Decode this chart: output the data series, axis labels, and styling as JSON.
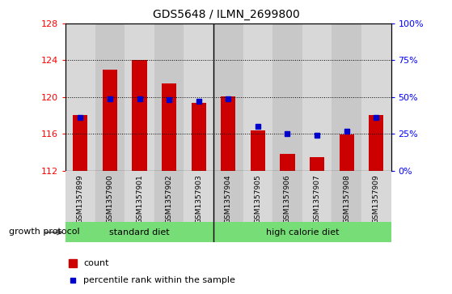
{
  "title": "GDS5648 / ILMN_2699800",
  "samples": [
    "GSM1357899",
    "GSM1357900",
    "GSM1357901",
    "GSM1357902",
    "GSM1357903",
    "GSM1357904",
    "GSM1357905",
    "GSM1357906",
    "GSM1357907",
    "GSM1357908",
    "GSM1357909"
  ],
  "red_values": [
    118.0,
    123.0,
    124.0,
    121.5,
    119.4,
    120.1,
    116.4,
    113.8,
    113.5,
    115.9,
    118.0
  ],
  "blue_values": [
    36,
    49,
    49,
    48,
    47,
    49,
    30,
    25,
    24,
    27,
    36
  ],
  "ylim_left": [
    112,
    128
  ],
  "ylim_right": [
    0,
    100
  ],
  "yticks_left": [
    112,
    116,
    120,
    124,
    128
  ],
  "yticks_right": [
    0,
    25,
    50,
    75,
    100
  ],
  "yticklabels_right": [
    "0%",
    "25%",
    "50%",
    "75%",
    "100%"
  ],
  "groups": [
    {
      "label": "standard diet",
      "start": 0,
      "end": 4
    },
    {
      "label": "high calorie diet",
      "start": 5,
      "end": 10
    }
  ],
  "group_label": "growth protocol",
  "bar_color": "#cc0000",
  "dot_color": "#0000cc",
  "bar_bottom": 112,
  "bar_width": 0.5,
  "group_color": "#77dd77",
  "legend_items": [
    "count",
    "percentile rank within the sample"
  ],
  "col_colors": [
    "#d8d8d8",
    "#c8c8c8"
  ]
}
